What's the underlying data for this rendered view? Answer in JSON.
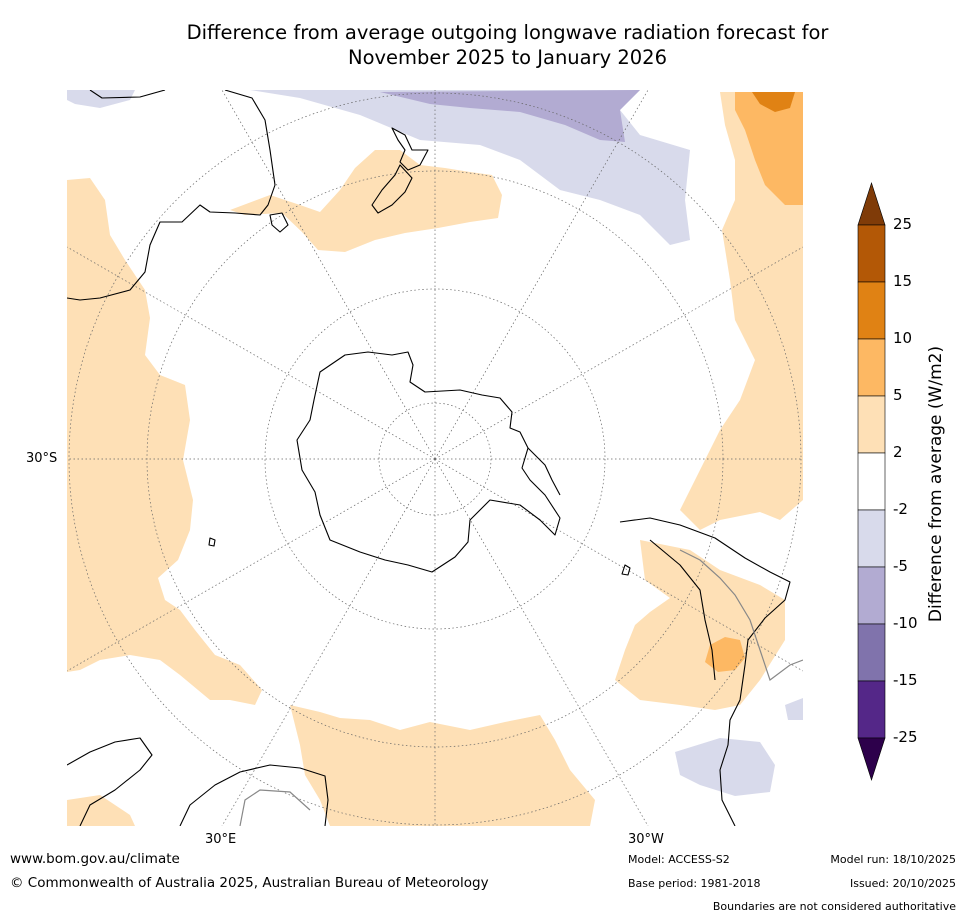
{
  "title": {
    "line1": "Difference from average outgoing longwave radiation forecast for",
    "line2": "November 2025 to January 2026"
  },
  "map": {
    "projection": "south polar stereographic",
    "lat_label": "30°S",
    "lon_labels": [
      "30°E",
      "30°W"
    ]
  },
  "colorbar": {
    "title": "Difference from average (W/m2)",
    "ticks": [
      "25",
      "15",
      "10",
      "5",
      "2",
      "-2",
      "-5",
      "-10",
      "-15",
      "-25"
    ],
    "colors": {
      "extend_max": "#7f3b08",
      "b15_25": "#b35806",
      "b10_15": "#e08214",
      "b5_10": "#fdb863",
      "b2_5": "#fee0b6",
      "neutral": "#ffffff",
      "bm2_m5": "#d8daeb",
      "bm5_m10": "#b2abd2",
      "bm10_m15": "#8073ac",
      "bm15_m25": "#542788",
      "extend_min": "#2d004b"
    }
  },
  "footer": {
    "website": "www.bom.gov.au/climate",
    "copyright": "© Commonwealth of Australia 2025, Australian Bureau of Meteorology",
    "model": "Model: ACCESS-S2",
    "base_period": "Base period: 1981-2018",
    "model_run": "Model run: 18/10/2025",
    "issued": "Issued: 20/10/2025",
    "disclaimer": "Boundaries are not considered authoritative"
  }
}
